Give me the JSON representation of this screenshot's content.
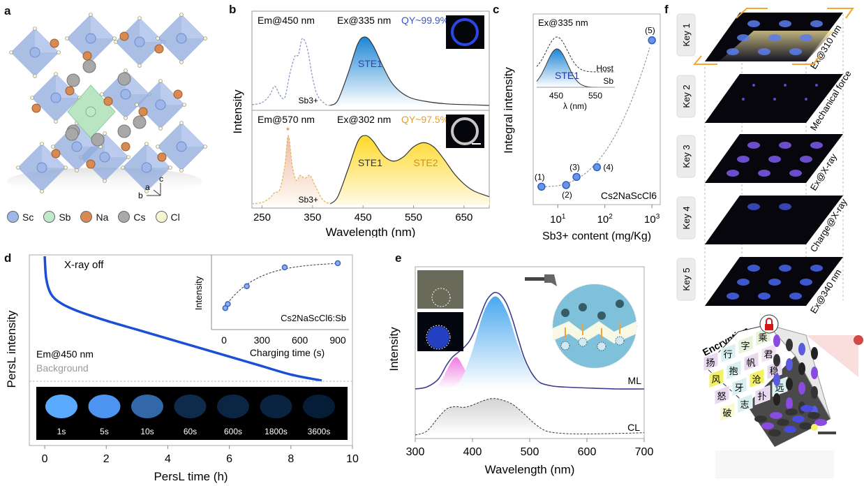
{
  "panels": {
    "a": {
      "letter": "a",
      "legend": [
        {
          "name": "Sc",
          "color": "#9fb7e8"
        },
        {
          "name": "Sb",
          "color": "#bfe9c9"
        },
        {
          "name": "Na",
          "color": "#d98a52"
        },
        {
          "name": "Cs",
          "color": "#a9a9a9"
        },
        {
          "name": "Cl",
          "color": "#f6f5d2"
        }
      ],
      "axes": {
        "c": "c",
        "a": "a",
        "b": "b"
      }
    },
    "b": {
      "letter": "b"
    },
    "c": {
      "letter": "c"
    },
    "d": {
      "letter": "d"
    },
    "e": {
      "letter": "e"
    },
    "f": {
      "letter": "f",
      "keys": [
        {
          "label": "Key 1",
          "condition": "Ex@310 nm"
        },
        {
          "label": "Key 2",
          "condition": "Mechanical force"
        },
        {
          "label": "Key 3",
          "condition": "Ex@X-ray"
        },
        {
          "label": "Key 4",
          "condition": "Charge@X-ray"
        },
        {
          "label": "Key 5",
          "condition": "Ex@340 nm"
        }
      ],
      "cube_title": "Encryption",
      "cube_chars": [
        "扬",
        "行",
        "字",
        "乘",
        "风",
        "抱",
        "帆",
        "君",
        "怒",
        "牙",
        "沧",
        "稳",
        "破",
        "志",
        "扑",
        "远"
      ]
    }
  },
  "chart_data": [
    {
      "id": "b",
      "type": "line",
      "xlabel": "Wavelength (nm)",
      "ylabel": "Intensity",
      "xlim": [
        230,
        700
      ],
      "xticks": [
        250,
        350,
        450,
        550,
        650
      ],
      "subplots": [
        {
          "annotations": [
            "Em@450 nm",
            "Ex@335 nm",
            "QY~99.9%"
          ],
          "qy_color": "#3a55c8",
          "series": [
            {
              "name": "Sb3+ excitation",
              "style": "dashed",
              "color": "#8c9bc6",
              "x": [
                230,
                250,
                265,
                275,
                285,
                295,
                305,
                315,
                322,
                330,
                340,
                350,
                360,
                375,
                385
              ],
              "y": [
                0.02,
                0.05,
                0.15,
                0.28,
                0.16,
                0.12,
                0.45,
                0.7,
                0.72,
                0.95,
                0.8,
                0.4,
                0.15,
                0.03,
                0.01
              ]
            },
            {
              "name": "STE1 emission",
              "style": "solid",
              "fill": "blue",
              "label": "STE1",
              "x": [
                385,
                400,
                420,
                440,
                455,
                470,
                490,
                510,
                540,
                580,
                620,
                660,
                700
              ],
              "y": [
                0.01,
                0.08,
                0.45,
                0.88,
                0.97,
                0.85,
                0.55,
                0.3,
                0.13,
                0.06,
                0.03,
                0.02,
                0.01
              ]
            }
          ],
          "peak_labels": [
            "Sb3+",
            "STE1"
          ]
        },
        {
          "annotations": [
            "Em@570 nm",
            "Ex@302 nm",
            "QY~97.5%"
          ],
          "qy_color": "#e0a030",
          "series": [
            {
              "name": "Sb3+ excitation",
              "style": "dashed",
              "color": "#e0b860",
              "x": [
                230,
                250,
                265,
                275,
                285,
                295,
                302,
                310,
                318,
                325,
                335,
                345,
                355,
                370,
                385
              ],
              "y": [
                0.02,
                0.04,
                0.1,
                0.18,
                0.22,
                0.55,
                0.98,
                0.55,
                0.35,
                0.42,
                0.38,
                0.42,
                0.28,
                0.08,
                0.02
              ]
            },
            {
              "name": "STE1+STE2 emission",
              "style": "solid",
              "fill": "yellow",
              "x": [
                385,
                400,
                420,
                440,
                455,
                470,
                490,
                510,
                530,
                550,
                570,
                590,
                610,
                630,
                650,
                670,
                700
              ],
              "y": [
                0.02,
                0.12,
                0.5,
                0.9,
                0.98,
                0.9,
                0.7,
                0.62,
                0.68,
                0.82,
                0.88,
                0.82,
                0.65,
                0.45,
                0.3,
                0.2,
                0.12
              ]
            }
          ],
          "peak_labels": [
            "Sb3+",
            "STE1",
            "STE2"
          ]
        }
      ]
    },
    {
      "id": "c",
      "type": "scatter",
      "xlabel": "Sb3+ content (mg/Kg)",
      "ylabel": "Integral intensity",
      "xscale": "log",
      "xlim": [
        3,
        1500
      ],
      "xticks": [
        "10^1",
        "10^2",
        "10^3"
      ],
      "points": [
        {
          "label": "(1)",
          "x": 4.5,
          "y": 0.05
        },
        {
          "label": "(2)",
          "x": 15,
          "y": 0.06
        },
        {
          "label": "(3)",
          "x": 25,
          "y": 0.11
        },
        {
          "label": "(4)",
          "x": 68,
          "y": 0.17
        },
        {
          "label": "(5)",
          "x": 1000,
          "y": 0.95
        }
      ],
      "annotation": "Cs2NaScCl6",
      "inset": {
        "title": "Ex@335 nm",
        "xlabel": "λ (nm)",
        "xticks": [
          450,
          550
        ],
        "series": [
          "Host",
          "Sb"
        ],
        "peak_label": "STE1"
      }
    },
    {
      "id": "d",
      "type": "line",
      "xlabel": "PersL time (h)",
      "ylabel": "PersL intensity",
      "xlim": [
        -0.5,
        10
      ],
      "xticks": [
        0,
        2,
        4,
        6,
        8,
        10
      ],
      "yscale": "log",
      "annotations": [
        "X-ray off",
        "Em@450 nm",
        "Background"
      ],
      "series": [
        {
          "name": "PersL decay",
          "color": "#1a4fd6",
          "x": [
            0,
            0.05,
            0.2,
            0.5,
            1,
            2,
            3,
            4,
            5,
            6,
            7,
            8,
            9
          ],
          "y": [
            1.0,
            0.85,
            0.75,
            0.69,
            0.64,
            0.57,
            0.51,
            0.45,
            0.39,
            0.33,
            0.27,
            0.21,
            0.17
          ]
        }
      ],
      "photo_labels": [
        "1s",
        "5s",
        "10s",
        "60s",
        "600s",
        "1800s",
        "3600s"
      ],
      "photo_brightness": [
        1.0,
        0.85,
        0.55,
        0.15,
        0.12,
        0.1,
        0.06
      ],
      "inset": {
        "type": "scatter",
        "xlabel": "Charging time (s)",
        "ylabel": "Intensity",
        "xticks": [
          0,
          300,
          600,
          900
        ],
        "annotation": "Cs2NaScCl6:Sb",
        "points": [
          {
            "x": 10,
            "y": 0.12
          },
          {
            "x": 30,
            "y": 0.2
          },
          {
            "x": 180,
            "y": 0.55
          },
          {
            "x": 480,
            "y": 0.92
          },
          {
            "x": 900,
            "y": 1.0
          }
        ]
      }
    },
    {
      "id": "e",
      "type": "line",
      "xlabel": "Wavelength (nm)",
      "ylabel": "Intensity",
      "xlim": [
        300,
        700
      ],
      "xticks": [
        300,
        400,
        500,
        600,
        700
      ],
      "series": [
        {
          "name": "ML",
          "color": "#3b3b8f",
          "x": [
            300,
            320,
            340,
            355,
            365,
            375,
            385,
            395,
            405,
            415,
            425,
            435,
            442,
            450,
            460,
            470,
            480,
            490,
            500,
            510,
            520,
            540,
            560,
            600,
            650,
            700
          ],
          "y": [
            0.0,
            0.02,
            0.1,
            0.25,
            0.33,
            0.38,
            0.43,
            0.5,
            0.62,
            0.78,
            0.92,
            0.99,
            1.0,
            0.97,
            0.88,
            0.72,
            0.52,
            0.33,
            0.2,
            0.11,
            0.06,
            0.03,
            0.02,
            0.01,
            0.0,
            0.0
          ]
        },
        {
          "name": "ML fit peak 1",
          "color": "#e67ad6",
          "fill": "pink",
          "x": [
            330,
            345,
            360,
            372,
            385,
            400,
            415
          ],
          "y": [
            0,
            0.08,
            0.25,
            0.33,
            0.22,
            0.05,
            0
          ]
        },
        {
          "name": "ML fit peak 2",
          "color": "#7ab8ef",
          "fill": "blue",
          "x": [
            360,
            380,
            400,
            420,
            440,
            460,
            480,
            500,
            520,
            540
          ],
          "y": [
            0,
            0.1,
            0.4,
            0.8,
            0.96,
            0.8,
            0.45,
            0.18,
            0.05,
            0
          ]
        },
        {
          "name": "CL",
          "color": "#333333",
          "style": "dashed",
          "x": [
            300,
            320,
            340,
            355,
            370,
            385,
            400,
            420,
            435,
            450,
            470,
            490,
            510,
            530,
            560,
            600,
            650,
            700
          ],
          "y": [
            0.0,
            0.1,
            0.45,
            0.68,
            0.74,
            0.72,
            0.78,
            0.9,
            0.95,
            0.92,
            0.8,
            0.55,
            0.28,
            0.1,
            0.04,
            0.03,
            0.04,
            0.06
          ]
        }
      ],
      "labels": [
        "ML",
        "CL"
      ]
    }
  ]
}
